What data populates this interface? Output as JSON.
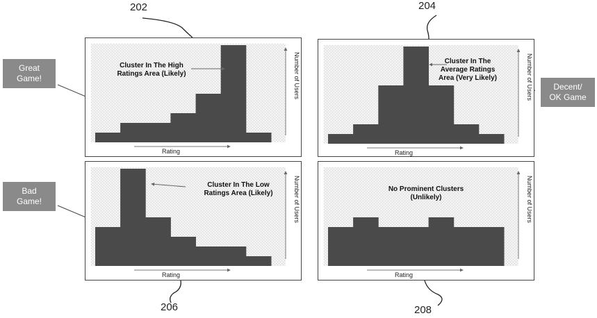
{
  "references": {
    "r202": "202",
    "r204": "204",
    "r206": "206",
    "r208": "208"
  },
  "callouts": {
    "great": "Great\nGame!",
    "decent": "Decent/\nOK Game",
    "bad": "Bad\nGame!"
  },
  "colors": {
    "bar": "#4a4a4a",
    "stipple": "#cfcfcf",
    "callout": "#8a8a8a"
  },
  "chart_data": [
    {
      "type": "bar",
      "xlabel": "Rating",
      "ylabel": "Number of Users",
      "annotation": "Cluster In The High\nRatings Area (Likely)",
      "values": [
        1,
        2,
        2,
        3,
        5,
        10,
        1
      ],
      "ylim": [
        0,
        10
      ]
    },
    {
      "type": "bar",
      "xlabel": "Rating",
      "ylabel": "Number of Users",
      "annotation": "Cluster In The\nAverage Ratings\nArea (Very Likely)",
      "values": [
        1,
        2,
        6,
        10,
        6,
        2,
        1
      ],
      "ylim": [
        0,
        10
      ]
    },
    {
      "type": "bar",
      "xlabel": "Rating",
      "ylabel": "Number of Users",
      "annotation": "Cluster In The Low\nRatings Area (Likely)",
      "values": [
        4,
        10,
        5,
        3,
        2,
        2,
        1
      ],
      "ylim": [
        0,
        10
      ]
    },
    {
      "type": "bar",
      "xlabel": "Rating",
      "ylabel": "Number of Users",
      "annotation": "No Prominent Clusters\n(Unlikely)",
      "values": [
        4,
        5,
        4,
        4,
        5,
        4,
        4
      ],
      "ylim": [
        0,
        10
      ]
    }
  ]
}
